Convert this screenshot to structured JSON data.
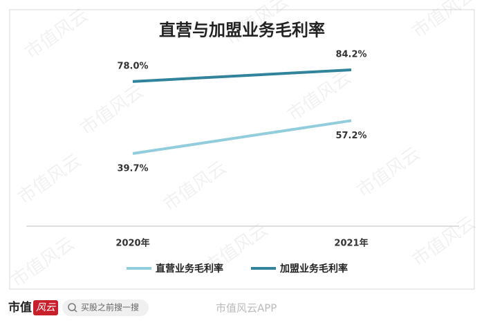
{
  "chart_data": {
    "type": "line",
    "title": "直营与加盟业务毛利率",
    "categories": [
      "2020年",
      "2021年"
    ],
    "series": [
      {
        "name": "直营业务毛利率",
        "color": "#92cddc",
        "values": [
          39.7,
          57.2
        ],
        "value_labels": [
          "39.7%",
          "57.2%"
        ]
      },
      {
        "name": "加盟业务毛利率",
        "color": "#31849b",
        "values": [
          78.0,
          84.2
        ],
        "value_labels": [
          "78.0%",
          "84.2%"
        ]
      }
    ],
    "ylim": [
      0,
      100
    ],
    "legend": "bottom"
  },
  "watermark": "市值风云",
  "footer": {
    "logo_left": "市值",
    "logo_right": "风云",
    "search": "买股之前搜一搜",
    "weibo": "市值风云APP"
  }
}
